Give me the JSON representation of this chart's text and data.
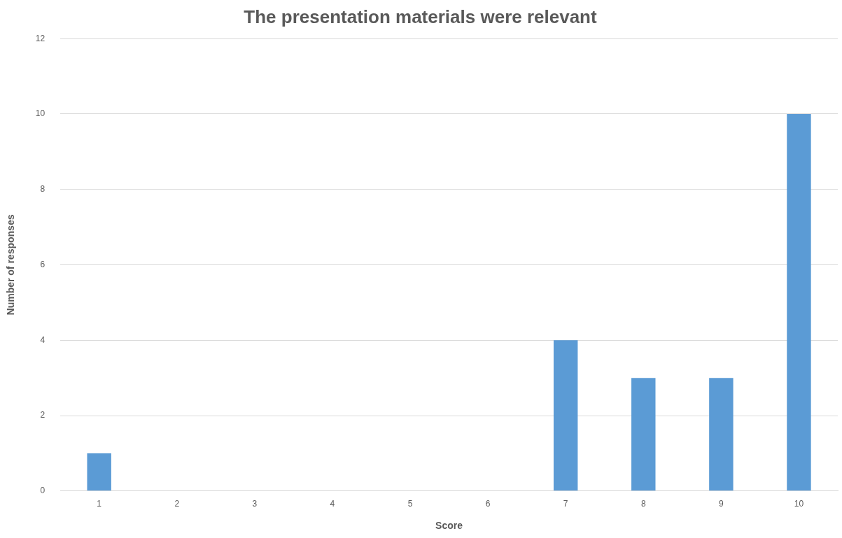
{
  "chart_data": {
    "type": "bar",
    "title": "The presentation materials were relevant",
    "xlabel": "Score",
    "ylabel": "Number of responses",
    "categories": [
      "1",
      "2",
      "3",
      "4",
      "5",
      "6",
      "7",
      "8",
      "9",
      "10"
    ],
    "values": [
      1,
      0,
      0,
      0,
      0,
      0,
      4,
      3,
      3,
      10
    ],
    "color": "#5b9bd5",
    "ylim": [
      0,
      12
    ],
    "yticks": [
      0,
      2,
      4,
      6,
      8,
      10,
      12
    ],
    "grid": "y",
    "legend": false
  }
}
